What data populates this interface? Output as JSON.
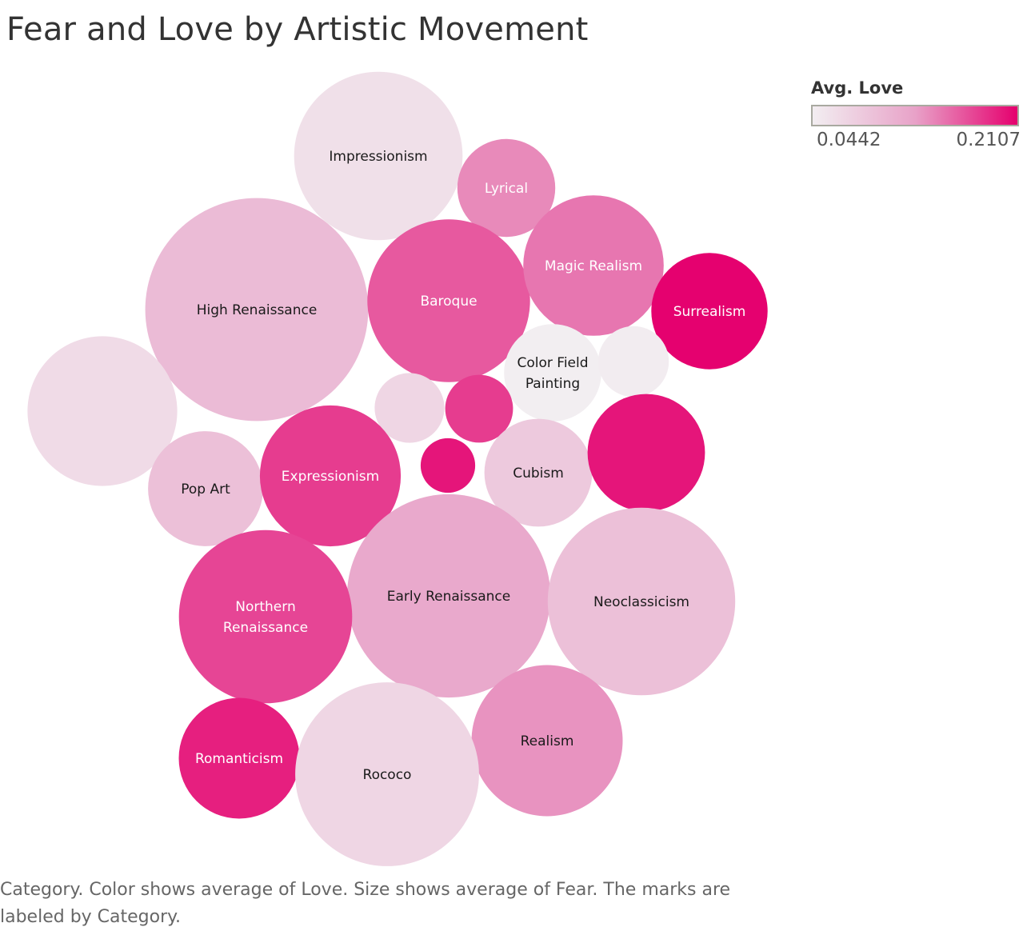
{
  "title": "Fear and Love by Artistic Movement",
  "legend": {
    "title": "Avg. Love",
    "min_label": "0.0442",
    "max_label": "0.2107"
  },
  "caption": "Category.  Color shows average of Love.  Size shows average of Fear.  The marks are labeled by Category.",
  "chart_data": {
    "type": "packed-bubble",
    "color_measure": "Avg. Love",
    "size_measure": "Avg. Fear",
    "color_range": [
      0.0442,
      0.2107
    ],
    "colors": {
      "low": "#f2eef1",
      "mid": "#e8a2c8",
      "high": "#e5006e"
    },
    "marks": [
      {
        "label": "Impressionism",
        "love": 0.06,
        "fear": 0.105
      },
      {
        "label": "Lyrical",
        "love": 0.14,
        "fear": 0.0355
      },
      {
        "label": "High Renaissance",
        "love": 0.1,
        "fear": 0.184
      },
      {
        "label": "Baroque",
        "love": 0.165,
        "fear": 0.098
      },
      {
        "label": "Magic Realism",
        "love": 0.15,
        "fear": 0.073
      },
      {
        "label": "Surrealism",
        "love": 0.21,
        "fear": 0.05
      },
      {
        "label": "Color Field Painting",
        "love": 0.0442,
        "fear": 0.035
      },
      {
        "label": "",
        "love": 0.046,
        "fear": 0.0185
      },
      {
        "label": "",
        "love": 0.065,
        "fear": 0.083
      },
      {
        "label": "",
        "love": 0.07,
        "fear": 0.018
      },
      {
        "label": "",
        "love": 0.18,
        "fear": 0.017
      },
      {
        "label": "",
        "love": 0.2,
        "fear": 0.011
      },
      {
        "label": "Cubism",
        "love": 0.085,
        "fear": 0.043
      },
      {
        "label": "",
        "love": 0.2,
        "fear": 0.051
      },
      {
        "label": "Pop Art",
        "love": 0.095,
        "fear": 0.049
      },
      {
        "label": "Expressionism",
        "love": 0.18,
        "fear": 0.0735
      },
      {
        "label": "Early Renaissance",
        "love": 0.12,
        "fear": 0.153
      },
      {
        "label": "Neoclassicism",
        "love": 0.095,
        "fear": 0.13
      },
      {
        "label": "Northern Renaissance",
        "love": 0.175,
        "fear": 0.111
      },
      {
        "label": "Realism",
        "love": 0.135,
        "fear": 0.0845
      },
      {
        "label": "Romanticism",
        "love": 0.195,
        "fear": 0.054
      },
      {
        "label": "Rococo",
        "love": 0.07,
        "fear": 0.125
      }
    ]
  }
}
